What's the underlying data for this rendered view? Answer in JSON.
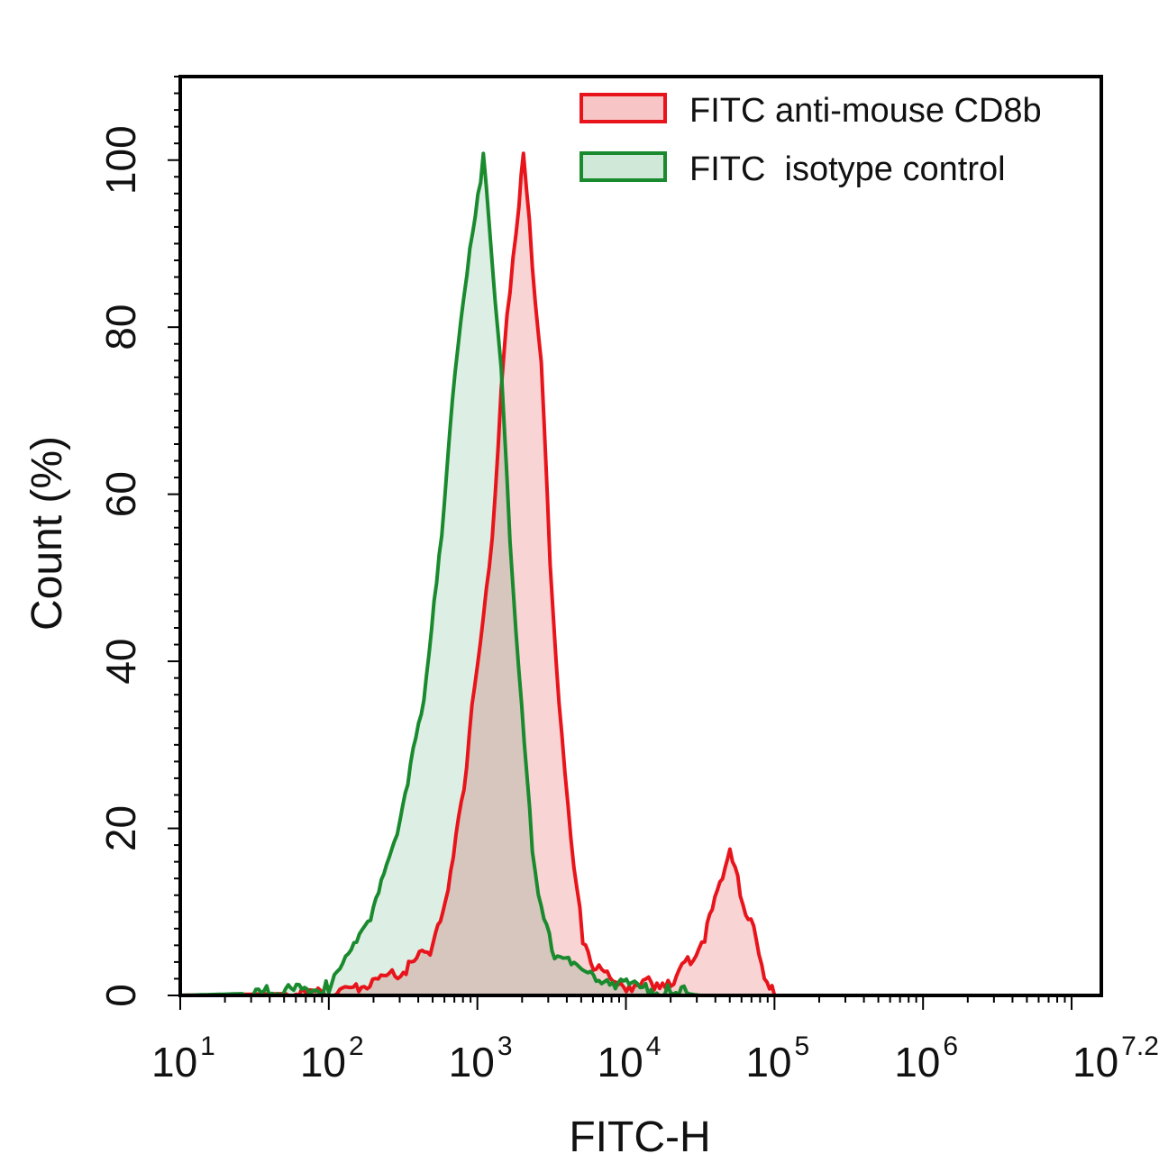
{
  "chart_data": {
    "type": "area",
    "title": "",
    "xlabel": "FITC-H",
    "ylabel": "Count (%)",
    "xscale": "log10",
    "xlim_log10": [
      1,
      7.2
    ],
    "ylim": [
      0,
      110
    ],
    "x_ticks": [
      {
        "base": "10",
        "exp": "1",
        "log": 1
      },
      {
        "base": "10",
        "exp": "2",
        "log": 2
      },
      {
        "base": "10",
        "exp": "3",
        "log": 3
      },
      {
        "base": "10",
        "exp": "4",
        "log": 4
      },
      {
        "base": "10",
        "exp": "5",
        "log": 5
      },
      {
        "base": "10",
        "exp": "6",
        "log": 6
      },
      {
        "base": "10",
        "exp": "7.2",
        "log": 7.2
      }
    ],
    "y_ticks": [
      "0",
      "20",
      "40",
      "60",
      "80",
      "100"
    ],
    "legend_position": "top-right",
    "series": [
      {
        "name": "FITC anti-mouse CD8b",
        "color": "#e8141b",
        "fill": "#f7c5c5",
        "x_log10": [
          1.0,
          2.0,
          2.22,
          2.52,
          2.7,
          2.82,
          2.91,
          3.0,
          3.1,
          3.16,
          3.22,
          3.28,
          3.31,
          3.37,
          3.43,
          3.49,
          3.55,
          3.63,
          3.71,
          3.8,
          4.04,
          4.34,
          4.53,
          4.65,
          4.7,
          4.77,
          4.86,
          4.95,
          5.0
        ],
        "y": [
          0,
          0.3,
          1,
          3,
          6,
          14,
          25,
          40,
          55,
          72,
          85,
          95,
          100,
          88,
          75,
          52,
          35,
          18,
          7,
          3,
          1,
          2,
          7,
          14,
          18,
          12,
          8,
          1,
          0
        ]
      },
      {
        "name": "FITC  isotype control",
        "color": "#1a8a2e",
        "fill": "#cfe8d8",
        "x_log10": [
          1.0,
          1.6,
          2.0,
          2.15,
          2.3,
          2.46,
          2.64,
          2.76,
          2.85,
          2.95,
          3.04,
          3.1,
          3.16,
          3.22,
          3.28,
          3.37,
          3.43,
          3.52,
          3.67,
          4.04,
          4.3,
          4.5
        ],
        "y": [
          0,
          0.3,
          1,
          5,
          10,
          20,
          35,
          55,
          75,
          90,
          100,
          88,
          75,
          55,
          38,
          18,
          10,
          5,
          3,
          1,
          0.5,
          0
        ]
      }
    ]
  }
}
